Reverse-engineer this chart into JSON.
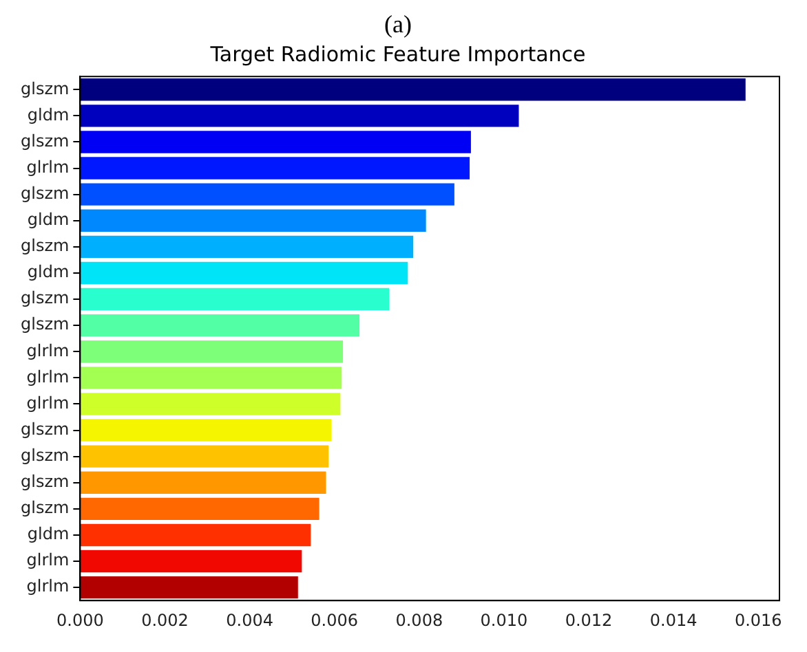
{
  "chart_data": {
    "type": "bar",
    "orientation": "horizontal",
    "title": "(a)",
    "subtitle": "Target Radiomic Feature Importance",
    "categories": [
      "glszm",
      "gldm",
      "glszm",
      "glrlm",
      "glszm",
      "gldm",
      "glszm",
      "gldm",
      "glszm",
      "glszm",
      "glrlm",
      "glrlm",
      "glrlm",
      "glszm",
      "glszm",
      "glszm",
      "glszm",
      "gldm",
      "glrlm",
      "glrlm"
    ],
    "values": [
      0.0157,
      0.01035,
      0.00922,
      0.00919,
      0.00883,
      0.00816,
      0.00786,
      0.00773,
      0.00729,
      0.00659,
      0.0062,
      0.00617,
      0.00614,
      0.00593,
      0.00586,
      0.0058,
      0.00564,
      0.00544,
      0.00523,
      0.00514
    ],
    "colors": [
      "#00007f",
      "#0000bf",
      "#0000f5",
      "#0018ff",
      "#0050ff",
      "#0088ff",
      "#00b0ff",
      "#00e4f7",
      "#29ffce",
      "#53ffa4",
      "#7dff7a",
      "#a4ff53",
      "#ceff29",
      "#f5f500",
      "#ffc200",
      "#ff9700",
      "#ff6800",
      "#ff3000",
      "#f10800",
      "#b20000"
    ],
    "xlim": [
      0,
      0.0165
    ],
    "xticks": [
      {
        "value": 0,
        "label": "0.000"
      },
      0.002,
      0.004,
      0.006,
      0.008,
      {
        "value": 0.01,
        "label": "0.010"
      },
      0.012,
      0.014,
      0.016
    ],
    "grid": false,
    "legend": false
  }
}
